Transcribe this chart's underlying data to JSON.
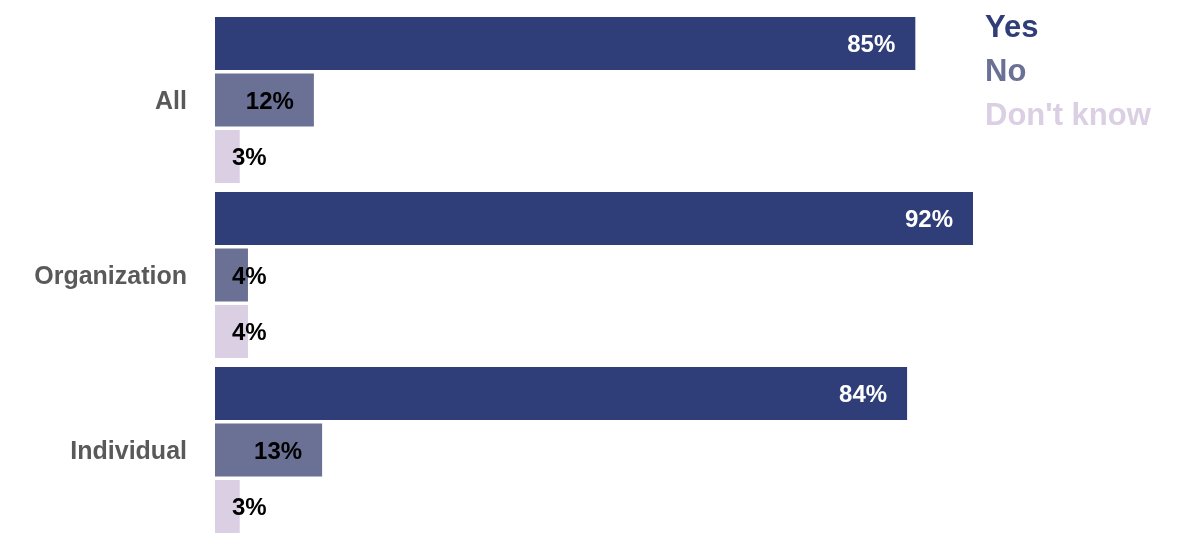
{
  "chart_data": {
    "type": "bar",
    "orientation": "horizontal",
    "categories": [
      "All",
      "Organization",
      "Individual"
    ],
    "series": [
      {
        "name": "Yes",
        "color": "#2f3d78",
        "values": [
          85,
          92,
          84
        ],
        "value_labels": [
          "85%",
          "92%",
          "84%"
        ]
      },
      {
        "name": "No",
        "color": "#6b7194",
        "values": [
          12,
          4,
          13
        ],
        "value_labels": [
          "12%",
          "4%",
          "13%"
        ]
      },
      {
        "name": "Don't know",
        "color": "#dacfe3",
        "values": [
          3,
          4,
          3
        ],
        "value_labels": [
          "3%",
          "4%",
          "3%"
        ]
      }
    ],
    "legend": "top right",
    "tick_labels": "y"
  }
}
